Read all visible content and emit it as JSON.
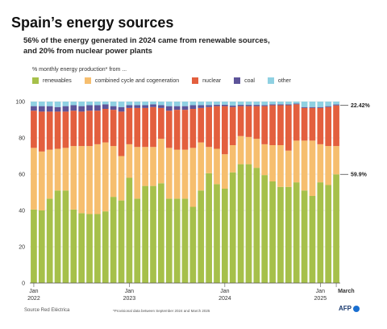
{
  "title": "Spain’s energy sources",
  "subtitle": "56% of the energy generated in 2024 came from renewable sources, and 20% from nuclear power plants",
  "legend_title": "% monthly energy production* from ...",
  "source": "Source Red Eléctrica",
  "footnote": "*Provisional data between September 2024 and March 2025",
  "brand": "AFP",
  "colors": {
    "renewables": "#a6c04a",
    "combined": "#f6be6e",
    "nuclear": "#e35f3e",
    "coal": "#5d5499",
    "other": "#8fd1e2"
  },
  "chart_data": {
    "type": "bar",
    "stacked": true,
    "ylim": [
      0,
      100
    ],
    "yticks": [
      "0",
      "20",
      "40",
      "60",
      "80",
      "100"
    ],
    "x_ticks": [
      {
        "index": 0,
        "month": "Jan",
        "year": "2022"
      },
      {
        "index": 12,
        "month": "Jan",
        "year": "2023"
      },
      {
        "index": 24,
        "month": "Jan",
        "year": "2024"
      },
      {
        "index": 36,
        "month": "Jan",
        "year": "2025"
      },
      {
        "index": 38,
        "month": "March",
        "year": ""
      }
    ],
    "annotations": [
      {
        "series": "nuclear_top",
        "label": "22.42%"
      },
      {
        "series": "renewables",
        "label": "59.9%"
      }
    ],
    "months": 39,
    "series": [
      {
        "name": "renewables",
        "values": [
          40.5,
          40,
          46.5,
          51,
          51,
          40.5,
          38.5,
          38,
          38,
          39.5,
          47.5,
          45.5,
          58,
          46.5,
          53.5,
          53.5,
          55,
          46.5,
          46.5,
          46.5,
          42,
          51,
          60.5,
          54.5,
          52,
          61,
          65.5,
          65.5,
          63.5,
          59.5,
          56,
          53,
          53,
          55.5,
          51,
          48,
          55.5,
          54,
          59.9
        ]
      },
      {
        "name": "combined cycle and cogeneration",
        "values": [
          34,
          32.5,
          27,
          23,
          23.5,
          35,
          37,
          37.5,
          38.5,
          38,
          28,
          24.5,
          18.5,
          28.5,
          21.5,
          21.5,
          24.5,
          28,
          27,
          27,
          32.5,
          26.5,
          14.5,
          19.5,
          19,
          15,
          15.5,
          15,
          16,
          17,
          20,
          23,
          20,
          23,
          27.5,
          30.5,
          21,
          21.5,
          15.6
        ]
      },
      {
        "name": "nuclear",
        "values": [
          20.5,
          22,
          21,
          20.5,
          20,
          19.5,
          19,
          19.5,
          18.5,
          18.5,
          20,
          24.5,
          20,
          21.5,
          21.5,
          22,
          17,
          20.5,
          22,
          22,
          21.5,
          19,
          22,
          23.5,
          26.5,
          21,
          16.5,
          17,
          18,
          21,
          22,
          22,
          25,
          20,
          18,
          18,
          20,
          21.5,
          22.42
        ]
      },
      {
        "name": "coal",
        "values": [
          2.5,
          3,
          3,
          2.5,
          3,
          3,
          3,
          3,
          3,
          2.5,
          2,
          2.5,
          1.5,
          1.5,
          1.5,
          1.5,
          1.5,
          2.5,
          2,
          2,
          2,
          1.5,
          1,
          0.8,
          0.8,
          0.8,
          0.7,
          0.7,
          0.7,
          0.6,
          0.5,
          0.5,
          0.5,
          0.4,
          0.5,
          0.5,
          0.5,
          0.5,
          0.5
        ]
      },
      {
        "name": "other",
        "values": [
          2.5,
          2.5,
          2.5,
          3,
          2.5,
          2,
          2.5,
          2,
          2,
          1.5,
          2.5,
          3,
          2,
          2,
          2,
          1.5,
          2,
          2.5,
          2.5,
          2.5,
          2,
          2,
          2,
          1.7,
          1.7,
          2.2,
          1.8,
          1.8,
          1.8,
          1.9,
          1.5,
          1.5,
          1.5,
          1.1,
          3,
          3,
          3,
          2.5,
          1.58
        ]
      }
    ]
  }
}
